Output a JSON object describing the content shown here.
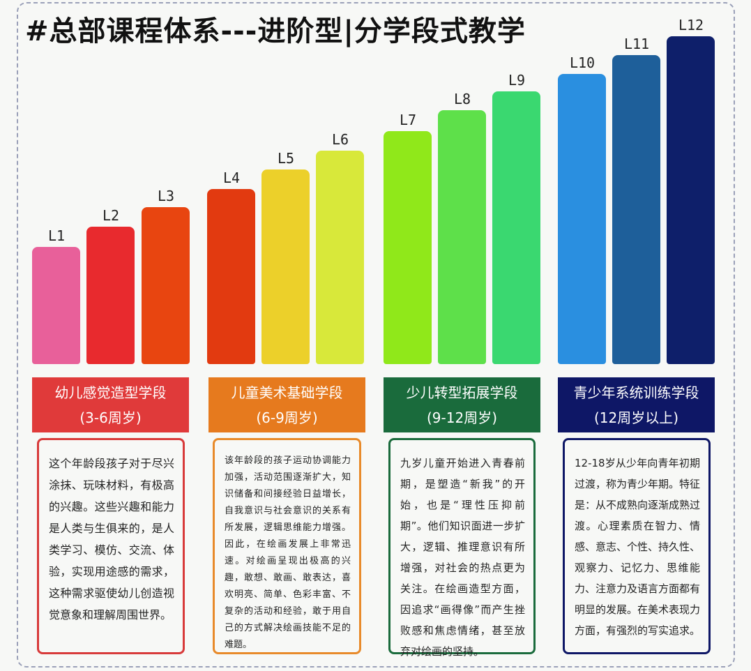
{
  "title": "#总部课程体系---进阶型|分学段式教学",
  "levels": [
    "L1",
    "L2",
    "L3",
    "L4",
    "L5",
    "L6",
    "L7",
    "L8",
    "L9",
    "L10",
    "L11",
    "L12"
  ],
  "stages": [
    {
      "name": "幼儿感觉造型学段",
      "age": "(3-6周岁)",
      "description": "这个年龄段孩子对于尽兴涂抹、玩味材料，有极高的兴趣。这些兴趣和能力是人类与生俱来的，是人类学习、模仿、交流、体验，实现用途感的需求，这种需求驱使幼儿创造视觉意象和理解周围世界。"
    },
    {
      "name": "儿童美术基础学段",
      "age": "(6-9周岁)",
      "description": "该年龄段的孩子运动协调能力加强，活动范围逐渐扩大，知识储备和间接经验日益增长，自我意识与社会意识的关系有所发展，逻辑思维能力增强。因此，在绘画发展上非常迅速。对绘画呈现出极高的兴趣，敢想、敢画、敢表达，喜欢明亮、简单、色彩丰富、不复杂的活动和经验，敢于用自己的方式解决绘画技能不足的难题。"
    },
    {
      "name": "少儿转型拓展学段",
      "age": "(9-12周岁)",
      "description": "九岁儿童开始进入青春前期，是塑造“新我”的开始，也是“理性压抑前期”。他们知识面进一步扩大，逻辑、推理意识有所增强，对社会的热点更为关注。在绘画造型方面，因追求“画得像”而产生挫败感和焦虑情绪，甚至放弃对绘画的坚持。"
    },
    {
      "name": "青少年系统训练学段",
      "age": "(12周岁以上)",
      "description": "12-18岁从少年向青年初期过渡，称为青少年期。特征是：从不成熟向逐渐成熟过渡。心理素质在智力、情感、意志、个性、持久性、观察力、记忆力、思维能力、注意力及语言方面都有明显的发展。在美术表现力方面，有强烈的写实追求。"
    }
  ]
}
